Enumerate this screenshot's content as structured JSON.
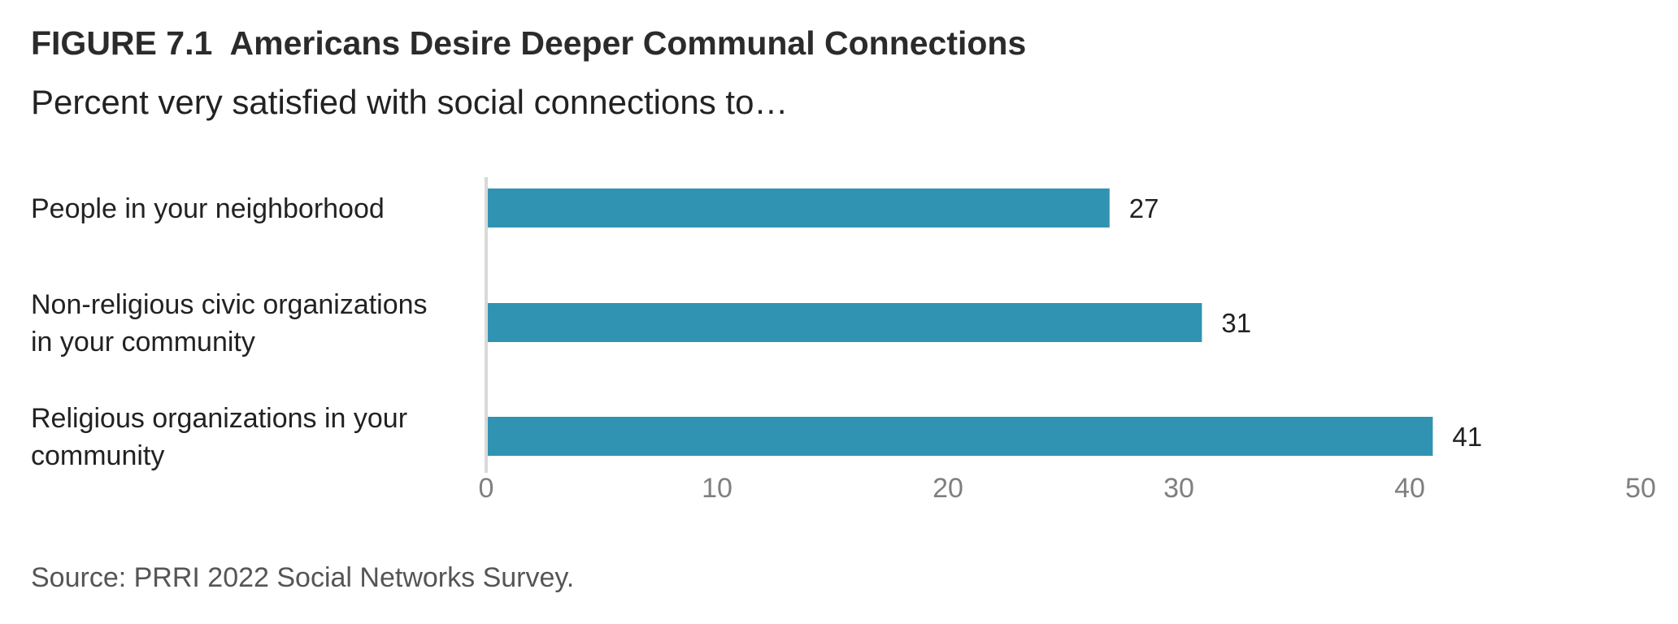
{
  "title": "FIGURE 7.1  Americans Desire Deeper Communal Connections",
  "subtitle": "Percent very satisfied with social connections to…",
  "source": "Source: PRRI 2022 Social Networks Survey.",
  "colors": {
    "bar": "#3193b2",
    "axis": "#d9d9d9",
    "tick": "#7f7f7f"
  },
  "chart_data": {
    "type": "bar",
    "orientation": "horizontal",
    "categories": [
      [
        "People in your neighborhood"
      ],
      [
        "Non-religious civic organizations",
        "in your community"
      ],
      [
        "Religious organizations in your",
        "community"
      ]
    ],
    "values": [
      27,
      31,
      41
    ],
    "data_labels": [
      "27",
      "31",
      "41"
    ],
    "xlim": [
      0,
      50
    ],
    "xticks": [
      0,
      10,
      20,
      30,
      40,
      50
    ],
    "grid": false,
    "legend": "none"
  }
}
